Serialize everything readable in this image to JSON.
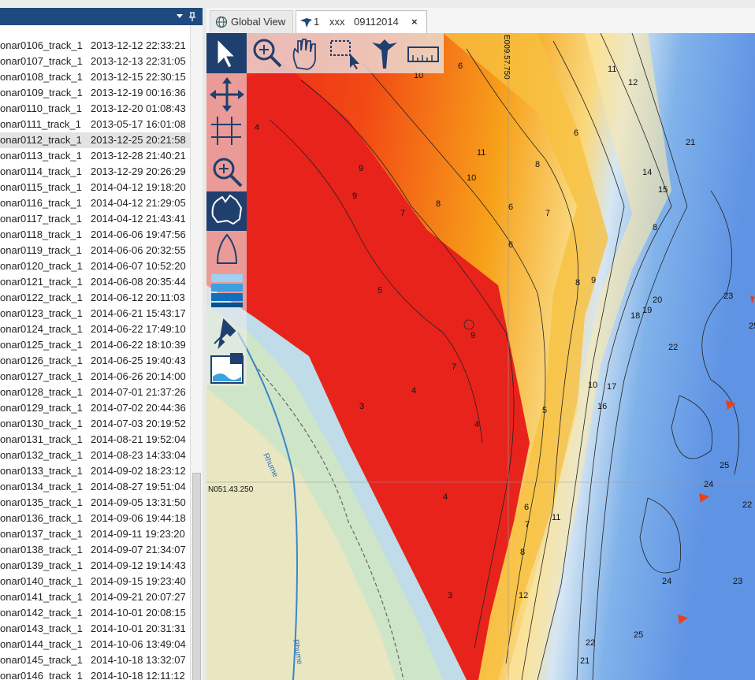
{
  "tabs": [
    {
      "label": "Global View"
    },
    {
      "number": "1",
      "name": "xxx",
      "date": "09112014",
      "close": "×"
    }
  ],
  "tracks": [
    {
      "name": "onar0106_track_1",
      "date": "2013-12-12 22:33:21"
    },
    {
      "name": "onar0107_track_1",
      "date": "2013-12-13 22:31:05"
    },
    {
      "name": "onar0108_track_1",
      "date": "2013-12-15 22:30:15"
    },
    {
      "name": "onar0109_track_1",
      "date": "2013-12-19 00:16:36"
    },
    {
      "name": "onar0110_track_1",
      "date": "2013-12-20 01:08:43"
    },
    {
      "name": "onar0111_track_1",
      "date": "2013-05-17 16:01:08"
    },
    {
      "name": "onar0112_track_1",
      "date": "2013-12-25 20:21:58"
    },
    {
      "name": "onar0113_track_1",
      "date": "2013-12-28 21:40:21"
    },
    {
      "name": "onar0114_track_1",
      "date": "2013-12-29 20:26:29"
    },
    {
      "name": "onar0115_track_1",
      "date": "2014-04-12 19:18:20"
    },
    {
      "name": "onar0116_track_1",
      "date": "2014-04-12 21:29:05"
    },
    {
      "name": "onar0117_track_1",
      "date": "2014-04-12 21:43:41"
    },
    {
      "name": "onar0118_track_1",
      "date": "2014-06-06 19:47:56"
    },
    {
      "name": "onar0119_track_1",
      "date": "2014-06-06 20:32:55"
    },
    {
      "name": "onar0120_track_1",
      "date": "2014-06-07 10:52:20"
    },
    {
      "name": "onar0121_track_1",
      "date": "2014-06-08 20:35:44"
    },
    {
      "name": "onar0122_track_1",
      "date": "2014-06-12 20:11:03"
    },
    {
      "name": "onar0123_track_1",
      "date": "2014-06-21 15:43:17"
    },
    {
      "name": "onar0124_track_1",
      "date": "2014-06-22 17:49:10"
    },
    {
      "name": "onar0125_track_1",
      "date": "2014-06-22 18:10:39"
    },
    {
      "name": "onar0126_track_1",
      "date": "2014-06-25 19:40:43"
    },
    {
      "name": "onar0127_track_1",
      "date": "2014-06-26 20:14:00"
    },
    {
      "name": "onar0128_track_1",
      "date": "2014-07-01 21:37:26"
    },
    {
      "name": "onar0129_track_1",
      "date": "2014-07-02 20:44:36"
    },
    {
      "name": "onar0130_track_1",
      "date": "2014-07-03 20:19:52"
    },
    {
      "name": "onar0131_track_1",
      "date": "2014-08-21 19:52:04"
    },
    {
      "name": "onar0132_track_1",
      "date": "2014-08-23 14:33:04"
    },
    {
      "name": "onar0133_track_1",
      "date": "2014-09-02 18:23:12"
    },
    {
      "name": "onar0134_track_1",
      "date": "2014-08-27 19:51:04"
    },
    {
      "name": "onar0135_track_1",
      "date": "2014-09-05 13:31:50"
    },
    {
      "name": "onar0136_track_1",
      "date": "2014-09-06 19:44:18"
    },
    {
      "name": "onar0137_track_1",
      "date": "2014-09-11 19:23:20"
    },
    {
      "name": "onar0138_track_1",
      "date": "2014-09-07 21:34:07"
    },
    {
      "name": "onar0139_track_1",
      "date": "2014-09-12 19:14:43"
    },
    {
      "name": "onar0140_track_1",
      "date": "2014-09-15 19:23:40"
    },
    {
      "name": "onar0141_track_1",
      "date": "2014-09-21 20:07:27"
    },
    {
      "name": "onar0142_track_1",
      "date": "2014-10-01 20:08:15"
    },
    {
      "name": "onar0143_track_1",
      "date": "2014-10-01 20:31:31"
    },
    {
      "name": "onar0144_track_1",
      "date": "2014-10-06 13:49:04"
    },
    {
      "name": "onar0145_track_1",
      "date": "2014-10-18 13:32:07"
    },
    {
      "name": "onar0146_track_1",
      "date": "2014-10-18 12:11:12"
    }
  ],
  "map": {
    "longitude": "E009.57.750",
    "latitude": "N051.43.250",
    "rivers": [
      "Rhume",
      "Rhume"
    ],
    "contour_labels": [
      "6",
      "10",
      "11",
      "12",
      "4",
      "11",
      "10",
      "9",
      "9",
      "8",
      "7",
      "8",
      "6",
      "6",
      "7",
      "6",
      "14",
      "15",
      "21",
      "8",
      "5",
      "9",
      "7",
      "4",
      "3",
      "4",
      "5",
      "8",
      "9",
      "18",
      "19",
      "20",
      "23",
      "25",
      "22",
      "17",
      "16",
      "10",
      "25",
      "24",
      "4",
      "6",
      "7",
      "11",
      "8",
      "12",
      "3",
      "24",
      "23",
      "22",
      "22",
      "21",
      "25"
    ]
  }
}
